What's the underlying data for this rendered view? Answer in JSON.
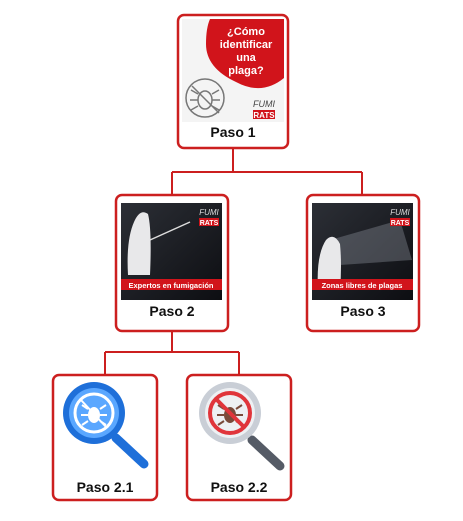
{
  "nodes": [
    {
      "label": "Paso 1",
      "image_text": [
        "¿Cómo",
        "identificar",
        "una",
        "plaga?"
      ],
      "logo": [
        "FUMI",
        "RATS"
      ]
    },
    {
      "label": "Paso 2",
      "image_text": [
        "Expertos en fumigación"
      ],
      "logo": [
        "FUMI",
        "RATS"
      ]
    },
    {
      "label": "Paso 3",
      "image_text": [
        "Zonas libres de plagas"
      ],
      "logo": [
        "FUMI",
        "RATS"
      ]
    },
    {
      "label": "Paso 2.1"
    },
    {
      "label": "Paso 2.2"
    }
  ]
}
